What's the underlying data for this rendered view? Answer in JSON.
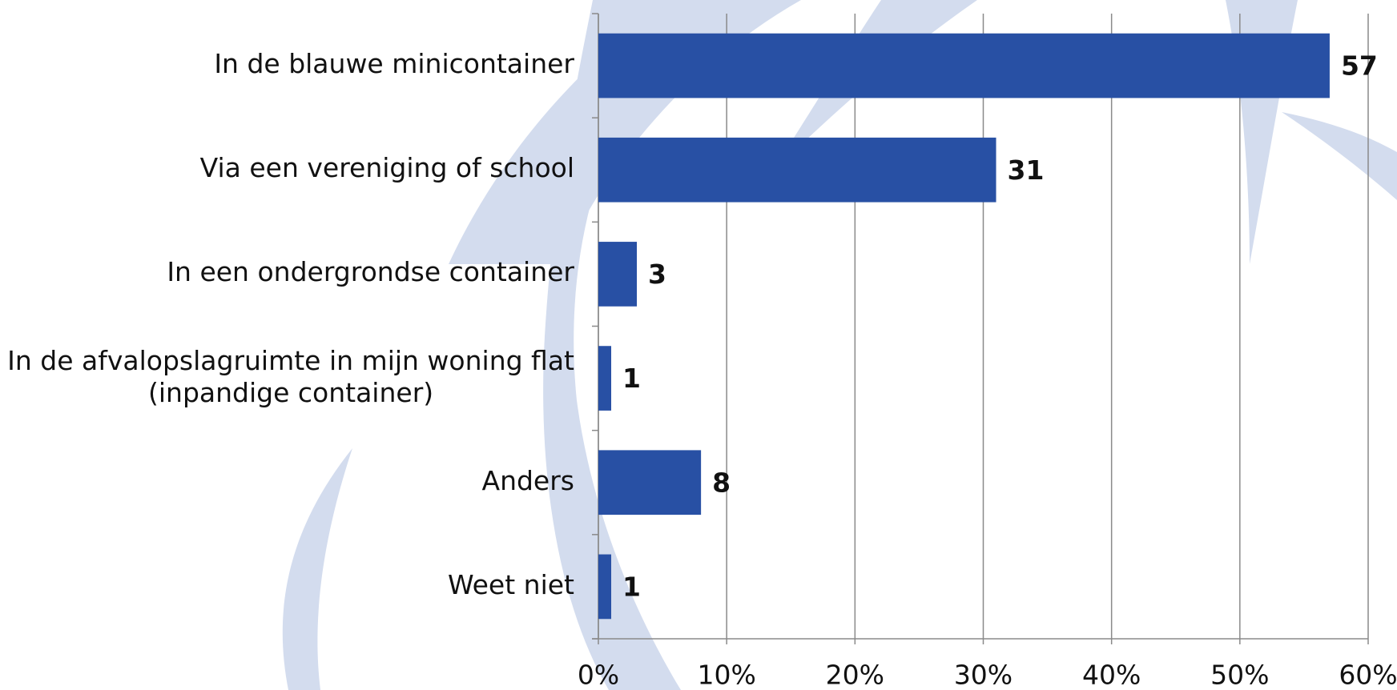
{
  "chart_data": {
    "type": "bar",
    "orientation": "horizontal",
    "categories": [
      "In de blauwe minicontainer",
      "Via een vereniging of school",
      "In een ondergrondse container",
      "In de afvalopslagruimte in mijn woning flat\n(inpandige container)",
      "Anders",
      "Weet niet"
    ],
    "values": [
      57,
      31,
      3,
      1,
      8,
      1
    ],
    "color": "#2850a4",
    "xlim": [
      0,
      60
    ],
    "xticks": [
      {
        "value": 0,
        "label": "0%"
      },
      {
        "value": 10,
        "label": "10%"
      },
      {
        "value": 20,
        "label": "20%"
      },
      {
        "value": 30,
        "label": "30%"
      },
      {
        "value": 40,
        "label": "40%"
      },
      {
        "value": 50,
        "label": "50%"
      },
      {
        "value": 60,
        "label": "60%"
      }
    ],
    "grid": true
  }
}
